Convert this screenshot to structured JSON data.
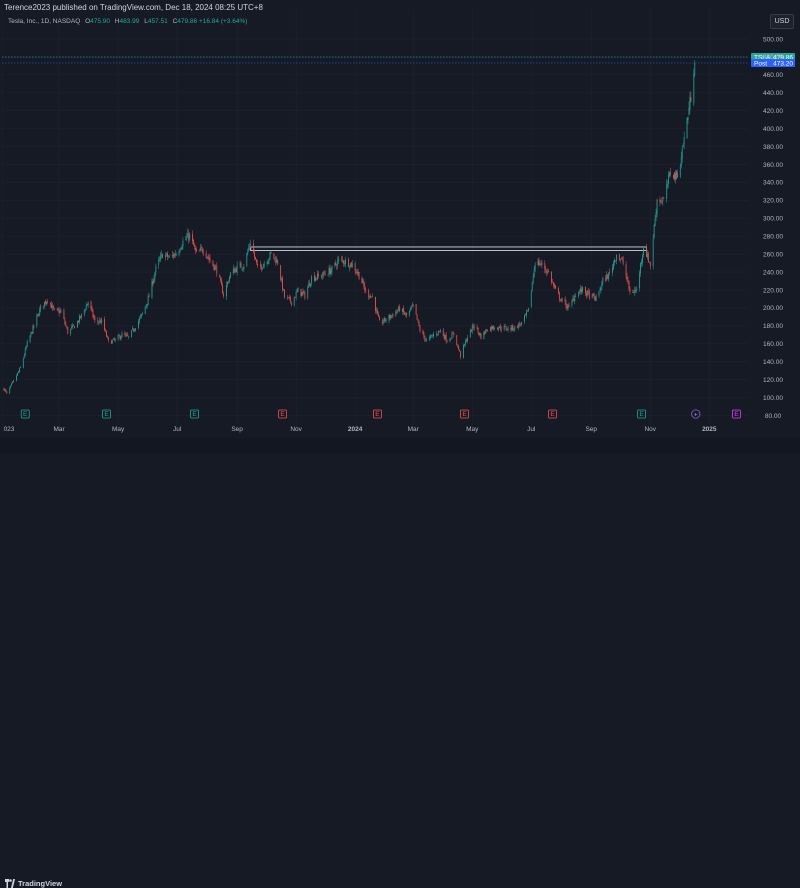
{
  "header": {
    "publisher": "Terence2023 published on TradingView.com, Dec 18, 2024 08:25 UTC+8",
    "symbol": "Tesla, Inc., 1D, NASDAQ",
    "open_label": "O",
    "open": "475.90",
    "high_label": "H",
    "high": "483.99",
    "low_label": "L",
    "low": "457.51",
    "close_label": "C",
    "close": "479.86",
    "change": "+16.84 (+3.64%)"
  },
  "currency_button": "USD",
  "footer": {
    "brand": "TradingView"
  },
  "colors": {
    "up": "#26a69a",
    "down": "#ef5350",
    "background": "#161a25",
    "grid": "#1f2330",
    "zone": "#d1d4dc",
    "last_price": "#26a69a",
    "post_price": "#2962ff"
  },
  "chart_data": {
    "type": "candlestick",
    "title": "",
    "xlabel": "",
    "ylabel": "",
    "ylim": [
      75,
      510
    ],
    "xlim": [
      "2023-01-01",
      "2025-02-10"
    ],
    "grid": true,
    "y_ticks": [
      500,
      480,
      460,
      440,
      420,
      400,
      380,
      360,
      340,
      320,
      300,
      280,
      260,
      240,
      220,
      200,
      180,
      160,
      140,
      120,
      100,
      80
    ],
    "y_tick_labels": [
      "500.00",
      "480.00",
      "460.00",
      "440.00",
      "420.00",
      "400.00",
      "380.00",
      "360.00",
      "340.00",
      "320.00",
      "300.00",
      "280.00",
      "260.00",
      "240.00",
      "220.00",
      "200.00",
      "180.00",
      "160.00",
      "140.00",
      "120.00",
      "100.00",
      "80.00"
    ],
    "x_ticks": [
      {
        "label": "023",
        "date": "2023-01-01"
      },
      {
        "label": "Mar",
        "date": "2023-03-01"
      },
      {
        "label": "May",
        "date": "2023-05-01"
      },
      {
        "label": "Jul",
        "date": "2023-07-01"
      },
      {
        "label": "Sep",
        "date": "2023-09-01"
      },
      {
        "label": "Nov",
        "date": "2023-11-01"
      },
      {
        "label": "2024",
        "date": "2024-01-01"
      },
      {
        "label": "Mar",
        "date": "2024-03-01"
      },
      {
        "label": "May",
        "date": "2024-05-01"
      },
      {
        "label": "Jul",
        "date": "2024-07-01"
      },
      {
        "label": "Sep",
        "date": "2024-09-01"
      },
      {
        "label": "Nov",
        "date": "2024-11-01"
      },
      {
        "label": "2025",
        "date": "2025-01-01"
      }
    ],
    "price_path": [
      [
        "2023-01-03",
        110
      ],
      [
        "2023-01-06",
        104
      ],
      [
        "2023-01-13",
        118
      ],
      [
        "2023-01-20",
        133
      ],
      [
        "2023-01-27",
        160
      ],
      [
        "2023-02-03",
        180
      ],
      [
        "2023-02-10",
        200
      ],
      [
        "2023-02-17",
        210
      ],
      [
        "2023-02-24",
        196
      ],
      [
        "2023-03-03",
        196
      ],
      [
        "2023-03-10",
        173
      ],
      [
        "2023-03-17",
        180
      ],
      [
        "2023-03-24",
        191
      ],
      [
        "2023-03-31",
        207
      ],
      [
        "2023-04-07",
        185
      ],
      [
        "2023-04-14",
        185
      ],
      [
        "2023-04-21",
        162
      ],
      [
        "2023-04-28",
        164
      ],
      [
        "2023-05-05",
        170
      ],
      [
        "2023-05-12",
        167
      ],
      [
        "2023-05-19",
        180
      ],
      [
        "2023-05-26",
        193
      ],
      [
        "2023-06-02",
        213
      ],
      [
        "2023-06-09",
        244
      ],
      [
        "2023-06-16",
        260
      ],
      [
        "2023-06-23",
        256
      ],
      [
        "2023-06-30",
        261
      ],
      [
        "2023-07-07",
        274
      ],
      [
        "2023-07-14",
        281
      ],
      [
        "2023-07-21",
        260
      ],
      [
        "2023-07-28",
        266
      ],
      [
        "2023-08-04",
        253
      ],
      [
        "2023-08-11",
        242
      ],
      [
        "2023-08-18",
        215
      ],
      [
        "2023-08-25",
        238
      ],
      [
        "2023-09-01",
        245
      ],
      [
        "2023-09-08",
        248
      ],
      [
        "2023-09-15",
        274
      ],
      [
        "2023-09-22",
        244
      ],
      [
        "2023-09-29",
        250
      ],
      [
        "2023-10-06",
        260
      ],
      [
        "2023-10-13",
        251
      ],
      [
        "2023-10-20",
        212
      ],
      [
        "2023-10-27",
        207
      ],
      [
        "2023-11-03",
        219
      ],
      [
        "2023-11-10",
        214
      ],
      [
        "2023-11-17",
        234
      ],
      [
        "2023-11-24",
        235
      ],
      [
        "2023-12-01",
        238
      ],
      [
        "2023-12-08",
        243
      ],
      [
        "2023-12-15",
        253
      ],
      [
        "2023-12-22",
        252
      ],
      [
        "2023-12-29",
        248
      ],
      [
        "2024-01-05",
        237
      ],
      [
        "2024-01-12",
        218
      ],
      [
        "2024-01-19",
        212
      ],
      [
        "2024-01-26",
        183
      ],
      [
        "2024-02-02",
        187
      ],
      [
        "2024-02-09",
        193
      ],
      [
        "2024-02-16",
        199
      ],
      [
        "2024-02-23",
        191
      ],
      [
        "2024-03-01",
        202
      ],
      [
        "2024-03-08",
        175
      ],
      [
        "2024-03-15",
        163
      ],
      [
        "2024-03-22",
        170
      ],
      [
        "2024-03-29",
        175
      ],
      [
        "2024-04-05",
        164
      ],
      [
        "2024-04-12",
        171
      ],
      [
        "2024-04-19",
        147
      ],
      [
        "2024-04-26",
        168
      ],
      [
        "2024-05-03",
        181
      ],
      [
        "2024-05-10",
        168
      ],
      [
        "2024-05-17",
        177
      ],
      [
        "2024-05-24",
        179
      ],
      [
        "2024-05-31",
        178
      ],
      [
        "2024-06-07",
        177
      ],
      [
        "2024-06-14",
        178
      ],
      [
        "2024-06-21",
        183
      ],
      [
        "2024-06-28",
        197
      ],
      [
        "2024-07-05",
        252
      ],
      [
        "2024-07-12",
        248
      ],
      [
        "2024-07-19",
        239
      ],
      [
        "2024-07-26",
        219
      ],
      [
        "2024-08-02",
        207
      ],
      [
        "2024-08-09",
        200
      ],
      [
        "2024-08-16",
        216
      ],
      [
        "2024-08-23",
        220
      ],
      [
        "2024-08-30",
        214
      ],
      [
        "2024-09-06",
        210
      ],
      [
        "2024-09-13",
        230
      ],
      [
        "2024-09-20",
        238
      ],
      [
        "2024-09-27",
        260
      ],
      [
        "2024-10-04",
        250
      ],
      [
        "2024-10-11",
        217
      ],
      [
        "2024-10-18",
        220
      ],
      [
        "2024-10-25",
        269
      ],
      [
        "2024-11-01",
        248
      ],
      [
        "2024-11-08",
        321
      ],
      [
        "2024-11-15",
        320
      ],
      [
        "2024-11-22",
        352
      ],
      [
        "2024-11-29",
        346
      ],
      [
        "2024-12-06",
        389
      ],
      [
        "2024-12-13",
        436
      ],
      [
        "2024-12-17",
        479.86
      ]
    ],
    "resistance_zone": {
      "top": 268,
      "bottom": 264,
      "start": "2023-09-15",
      "end": "2024-10-28"
    },
    "last_price": {
      "label": "TSLA",
      "value": 479.86,
      "text": "479.86"
    },
    "post_price": {
      "label": "Post",
      "value": 473.2,
      "text": "473.20"
    },
    "earnings_markers": [
      {
        "date": "2023-01-25",
        "letter": "E",
        "kind": "up"
      },
      {
        "date": "2023-04-19",
        "letter": "E",
        "kind": "up"
      },
      {
        "date": "2023-07-19",
        "letter": "E",
        "kind": "up"
      },
      {
        "date": "2023-10-18",
        "letter": "E",
        "kind": "down"
      },
      {
        "date": "2024-01-24",
        "letter": "E",
        "kind": "down"
      },
      {
        "date": "2024-04-23",
        "letter": "E",
        "kind": "down"
      },
      {
        "date": "2024-07-23",
        "letter": "E",
        "kind": "down"
      },
      {
        "date": "2024-10-23",
        "letter": "E",
        "kind": "up"
      },
      {
        "date": "2025-01-29",
        "letter": "E",
        "kind": "future"
      }
    ],
    "current_marker": {
      "date": "2024-12-18",
      "glyph": "+"
    }
  }
}
